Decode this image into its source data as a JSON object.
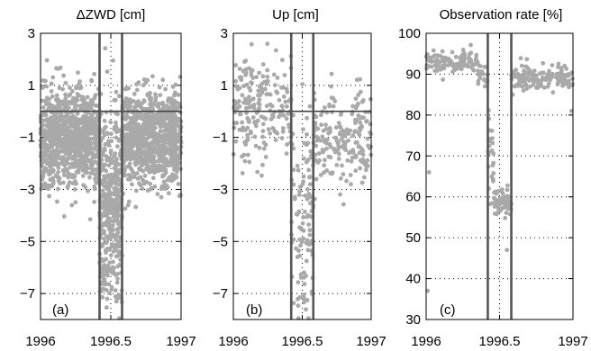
{
  "chart_data": [
    {
      "type": "scatter",
      "title": "ΔZWD [cm]",
      "panel_label": "(a)",
      "xlim": [
        1996,
        1997
      ],
      "ylim": [
        -8,
        3
      ],
      "xticks": [
        1996,
        1996.5,
        1997
      ],
      "xtick_labels": [
        "1996",
        "1996.5",
        "1997"
      ],
      "yticks": [
        -7,
        -5,
        -3,
        -1,
        1,
        3
      ],
      "ytick_labels": [
        "−7",
        "−5",
        "−3",
        "−1",
        "1",
        "3"
      ],
      "grid": "dotted",
      "reference_line_y": 0,
      "vertical_lines": [
        1996.42,
        1996.58
      ],
      "dotted_vertical_lines": [
        1996.5
      ],
      "point_color": "#a9a9a9",
      "segments": [
        {
          "x0": 1996.0,
          "x1": 1996.42,
          "mean": -1.0,
          "spread": 0.9,
          "n": 950
        },
        {
          "x0": 1996.42,
          "x1": 1996.58,
          "mean": -3.6,
          "spread": 1.9,
          "n": 420
        },
        {
          "x0": 1996.58,
          "x1": 1997.0,
          "mean": -1.0,
          "spread": 0.9,
          "n": 950
        }
      ]
    },
    {
      "type": "scatter",
      "title": "Up [cm]",
      "panel_label": "(b)",
      "xlim": [
        1996,
        1997
      ],
      "ylim": [
        -8,
        3
      ],
      "xticks": [
        1996,
        1996.5,
        1997
      ],
      "xtick_labels": [
        "1996",
        "1996.5",
        "1997"
      ],
      "yticks": [
        -7,
        -5,
        -3,
        -1,
        1,
        3
      ],
      "ytick_labels": [
        "−7",
        "−5",
        "−3",
        "−1",
        "1",
        "3"
      ],
      "grid": "dotted",
      "reference_line_y": 0,
      "vertical_lines": [
        1996.42,
        1996.58
      ],
      "dotted_vertical_lines": [
        1996.5
      ],
      "point_color": "#a9a9a9",
      "segments": [
        {
          "x0": 1996.0,
          "x1": 1996.42,
          "mean": 0.3,
          "spread": 1.0,
          "n": 200
        },
        {
          "x0": 1996.42,
          "x1": 1996.58,
          "mean": -4.0,
          "spread": 2.1,
          "n": 110
        },
        {
          "x0": 1996.58,
          "x1": 1997.0,
          "mean": -1.0,
          "spread": 0.9,
          "n": 200
        }
      ]
    },
    {
      "type": "scatter",
      "title": "Observation rate [%]",
      "panel_label": "(c)",
      "xlim": [
        1996,
        1997
      ],
      "ylim": [
        30,
        100
      ],
      "xticks": [
        1996,
        1996.5,
        1997
      ],
      "xtick_labels": [
        "1996",
        "1996.5",
        "1997"
      ],
      "yticks": [
        30,
        40,
        50,
        60,
        70,
        80,
        90,
        100
      ],
      "ytick_labels": [
        "30",
        "40",
        "50",
        "60",
        "70",
        "80",
        "90",
        "100"
      ],
      "grid": "dotted",
      "vertical_lines": [
        1996.42,
        1996.58
      ],
      "dotted_vertical_lines": [
        1996.5
      ],
      "point_color": "#a9a9a9",
      "segments": [
        {
          "x0": 1996.0,
          "x1": 1996.35,
          "mean": 93.0,
          "spread": 1.2,
          "n": 110
        },
        {
          "x0": 1996.35,
          "x1": 1996.42,
          "mean": 90.0,
          "spread": 1.5,
          "n": 20
        },
        {
          "x0": 1996.42,
          "x1": 1996.46,
          "mean": 72.0,
          "spread": 5.0,
          "n": 25
        },
        {
          "x0": 1996.46,
          "x1": 1996.58,
          "mean": 58.5,
          "spread": 1.6,
          "n": 60
        },
        {
          "x0": 1996.58,
          "x1": 1997.0,
          "mean": 89.0,
          "spread": 1.6,
          "n": 150
        }
      ],
      "outliers": [
        [
          1996.02,
          66.0
        ],
        [
          1996.01,
          37.0
        ],
        [
          1996.55,
          47.0
        ],
        [
          1996.99,
          81.0
        ]
      ]
    }
  ]
}
